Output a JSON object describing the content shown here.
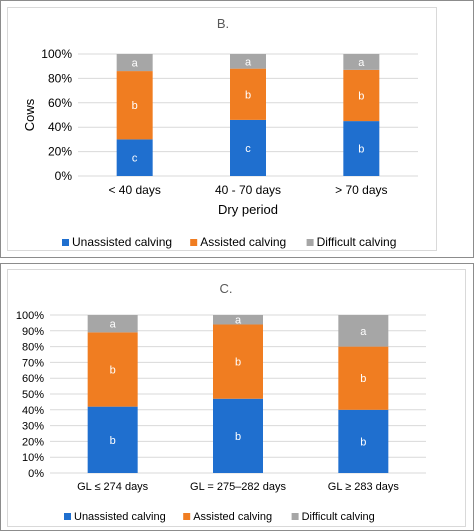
{
  "colors": {
    "unassisted": "#1f6fcf",
    "assisted": "#f07d21",
    "difficult": "#a6a6a6",
    "grid": "#d9d9d9",
    "axis_text": "#595959"
  },
  "chart_data": [
    {
      "type": "bar",
      "stacked": true,
      "title": "B.",
      "xlabel": "Dry period",
      "ylabel": "Cows",
      "ylim": [
        0,
        100
      ],
      "yticks": [
        "0%",
        "20%",
        "40%",
        "60%",
        "80%",
        "100%"
      ],
      "categories": [
        "< 40 days",
        "40 - 70 days",
        "> 70 days"
      ],
      "legend": "bottom",
      "series": [
        {
          "name": "Unassisted calving",
          "color": "#1f6fcf",
          "values": [
            30,
            46,
            45
          ],
          "labels": [
            "c",
            "c",
            "b"
          ]
        },
        {
          "name": "Assisted calving",
          "color": "#f07d21",
          "values": [
            56,
            42,
            42
          ],
          "labels": [
            "b",
            "b",
            "b"
          ]
        },
        {
          "name": "Difficult calving",
          "color": "#a6a6a6",
          "values": [
            14,
            12,
            13
          ],
          "labels": [
            "a",
            "a",
            "a"
          ]
        }
      ]
    },
    {
      "type": "bar",
      "stacked": true,
      "title": "C.",
      "xlabel": "",
      "ylabel": "",
      "ylim": [
        0,
        100
      ],
      "yticks": [
        "0%",
        "10%",
        "20%",
        "30%",
        "40%",
        "50%",
        "60%",
        "70%",
        "80%",
        "90%",
        "100%"
      ],
      "categories": [
        "GL ≤ 274 days",
        "GL = 275–282 days",
        "GL ≥ 283 days"
      ],
      "legend": "bottom",
      "series": [
        {
          "name": "Unassisted calving",
          "color": "#1f6fcf",
          "values": [
            42,
            47,
            40
          ],
          "labels": [
            "b",
            "b",
            "b"
          ]
        },
        {
          "name": "Assisted calving",
          "color": "#f07d21",
          "values": [
            47,
            47,
            40
          ],
          "labels": [
            "b",
            "b",
            "b"
          ]
        },
        {
          "name": "Difficult calving",
          "color": "#a6a6a6",
          "values": [
            11,
            6,
            20
          ],
          "labels": [
            "a",
            "a",
            "a"
          ]
        }
      ]
    }
  ]
}
